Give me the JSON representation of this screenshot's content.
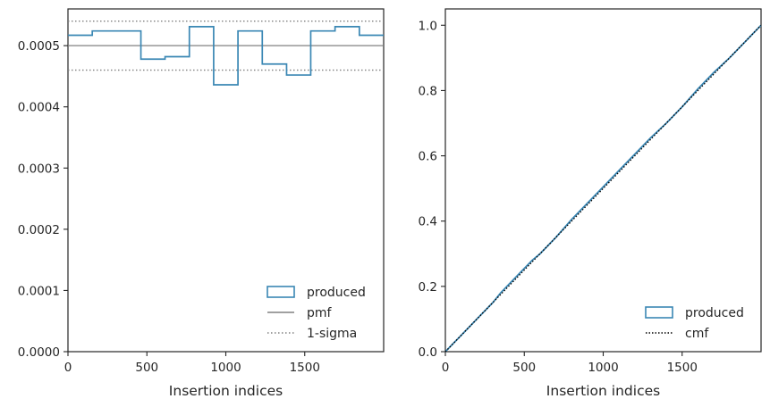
{
  "chart_data": [
    {
      "type": "histogram-step",
      "xlabel": "Insertion indices",
      "xlim": [
        0,
        2000
      ],
      "ylim": [
        0,
        0.00056
      ],
      "xticks": [
        0,
        500,
        1000,
        1500
      ],
      "xtick_labels": [
        "0",
        "500",
        "1000",
        "1500"
      ],
      "yticks": [
        0,
        0.0001,
        0.0002,
        0.0003,
        0.0004,
        0.0005
      ],
      "ytick_labels": [
        "0.0000",
        "0.0001",
        "0.0002",
        "0.0003",
        "0.0004",
        "0.0005"
      ],
      "bin_edges": [
        0,
        154,
        462,
        615,
        769,
        923,
        1077,
        1231,
        1385,
        1538,
        1692,
        1846,
        2000
      ],
      "produced_values": [
        0.000517,
        0.000524,
        0.000478,
        0.000482,
        0.000531,
        0.000436,
        0.000524,
        0.00047,
        0.000452,
        0.000524,
        0.000531,
        0.000517
      ],
      "pmf_value": 0.0005,
      "sigma_band": [
        0.00046,
        0.00054
      ],
      "legend": {
        "position": "lower-right",
        "entries": [
          "produced",
          "pmf",
          "1-sigma"
        ]
      },
      "colors": {
        "produced": "#3a87b4",
        "pmf": "#808080",
        "sigma": "#808080"
      }
    },
    {
      "type": "cumulative-step",
      "xlabel": "Insertion indices",
      "xlim": [
        0,
        2000
      ],
      "ylim": [
        0,
        1.05
      ],
      "xticks": [
        0,
        500,
        1000,
        1500
      ],
      "xtick_labels": [
        "0",
        "500",
        "1000",
        "1500"
      ],
      "yticks": [
        0,
        0.2,
        0.4,
        0.6,
        0.8,
        1.0
      ],
      "ytick_labels": [
        "0.0",
        "0.2",
        "0.4",
        "0.6",
        "0.8",
        "1.0"
      ],
      "produced_cumulative": {
        "x": [
          0,
          100,
          200,
          300,
          350,
          400,
          450,
          500,
          550,
          600,
          700,
          800,
          850,
          900,
          1000,
          1100,
          1200,
          1300,
          1400,
          1500,
          1600,
          1700,
          1800,
          1900,
          2000
        ],
        "y": [
          0,
          0.05,
          0.1,
          0.15,
          0.18,
          0.205,
          0.23,
          0.255,
          0.28,
          0.3,
          0.35,
          0.405,
          0.43,
          0.455,
          0.505,
          0.555,
          0.605,
          0.655,
          0.7,
          0.75,
          0.805,
          0.855,
          0.9,
          0.95,
          1.0
        ]
      },
      "cmf": {
        "x": [
          0,
          2000
        ],
        "y": [
          0,
          1.0
        ]
      },
      "legend": {
        "position": "lower-right",
        "entries": [
          "produced",
          "cmf"
        ]
      },
      "colors": {
        "produced": "#3a87b4",
        "cmf": "#000000"
      }
    }
  ]
}
